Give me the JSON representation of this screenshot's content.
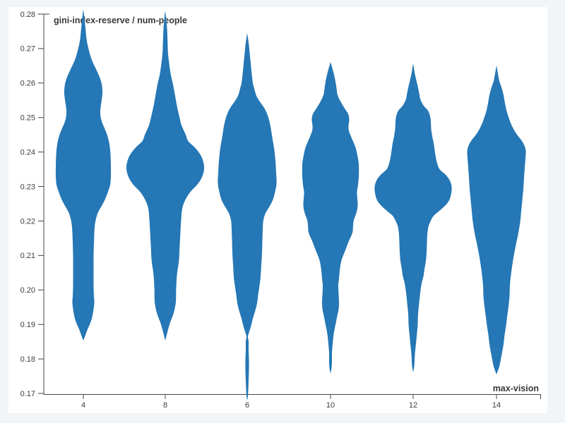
{
  "page": {
    "background_color": "#f1f5f8",
    "canvas_color": "#ffffff"
  },
  "chart_data": {
    "type": "violin",
    "title": "",
    "ylabel": "gini-index-reserve / num-people",
    "xlabel": "max-vision",
    "categories": [
      "4",
      "8",
      "6",
      "10",
      "12",
      "14"
    ],
    "y_ticks": [
      "0.28",
      "0.27",
      "0.26",
      "0.25",
      "0.24",
      "0.23",
      "0.22",
      "0.21",
      "0.20",
      "0.19",
      "0.18",
      "0.17"
    ],
    "y_domain": [
      0.17,
      0.28
    ],
    "grid": false,
    "legend": null,
    "colors": {
      "violin_fill": "#2577b5",
      "axis": "#444444",
      "tick_label": "#3d3d3d",
      "axis_title": "#3a3a3a"
    },
    "violins": [
      {
        "category": "4",
        "profile": [
          [
            0.2814,
            0
          ],
          [
            0.279,
            0.027
          ],
          [
            0.2759,
            0.055
          ],
          [
            0.2728,
            0.082
          ],
          [
            0.2698,
            0.136
          ],
          [
            0.2667,
            0.218
          ],
          [
            0.2636,
            0.345
          ],
          [
            0.2612,
            0.436
          ],
          [
            0.2591,
            0.482
          ],
          [
            0.2571,
            0.491
          ],
          [
            0.2551,
            0.473
          ],
          [
            0.253,
            0.445
          ],
          [
            0.251,
            0.436
          ],
          [
            0.2489,
            0.473
          ],
          [
            0.2469,
            0.545
          ],
          [
            0.2448,
            0.618
          ],
          [
            0.2422,
            0.673
          ],
          [
            0.2391,
            0.7
          ],
          [
            0.236,
            0.709
          ],
          [
            0.233,
            0.709
          ],
          [
            0.2305,
            0.691
          ],
          [
            0.2285,
            0.636
          ],
          [
            0.2264,
            0.564
          ],
          [
            0.2244,
            0.473
          ],
          [
            0.2228,
            0.391
          ],
          [
            0.2211,
            0.336
          ],
          [
            0.2191,
            0.3
          ],
          [
            0.2166,
            0.282
          ],
          [
            0.2136,
            0.273
          ],
          [
            0.2095,
            0.264
          ],
          [
            0.2054,
            0.264
          ],
          [
            0.2013,
            0.264
          ],
          [
            0.1982,
            0.273
          ],
          [
            0.1962,
            0.282
          ],
          [
            0.1937,
            0.255
          ],
          [
            0.1917,
            0.218
          ],
          [
            0.19,
            0.164
          ],
          [
            0.1886,
            0.109
          ],
          [
            0.1872,
            0.064
          ],
          [
            0.1853,
            0
          ]
        ]
      },
      {
        "category": "8",
        "profile": [
          [
            0.281,
            0
          ],
          [
            0.278,
            0.03
          ],
          [
            0.2749,
            0.05
          ],
          [
            0.2718,
            0.06
          ],
          [
            0.2688,
            0.07
          ],
          [
            0.2657,
            0.1
          ],
          [
            0.2626,
            0.14
          ],
          [
            0.2596,
            0.2
          ],
          [
            0.2565,
            0.25
          ],
          [
            0.2534,
            0.3
          ],
          [
            0.2504,
            0.36
          ],
          [
            0.2477,
            0.42
          ],
          [
            0.2452,
            0.52
          ],
          [
            0.2432,
            0.59
          ],
          [
            0.2412,
            0.77
          ],
          [
            0.2391,
            0.91
          ],
          [
            0.2371,
            0.98
          ],
          [
            0.235,
            1
          ],
          [
            0.2326,
            0.94
          ],
          [
            0.2305,
            0.82
          ],
          [
            0.2285,
            0.65
          ],
          [
            0.2262,
            0.52
          ],
          [
            0.2238,
            0.44
          ],
          [
            0.2207,
            0.41
          ],
          [
            0.2166,
            0.39
          ],
          [
            0.2125,
            0.37
          ],
          [
            0.2084,
            0.35
          ],
          [
            0.2043,
            0.3
          ],
          [
            0.2003,
            0.28
          ],
          [
            0.1962,
            0.27
          ],
          [
            0.1931,
            0.21
          ],
          [
            0.1907,
            0.13
          ],
          [
            0.188,
            0.06
          ],
          [
            0.1853,
            0
          ]
        ]
      },
      {
        "category": "6",
        "profile": [
          [
            0.2745,
            0
          ],
          [
            0.2718,
            0.036
          ],
          [
            0.2688,
            0.064
          ],
          [
            0.2657,
            0.091
          ],
          [
            0.2626,
            0.118
          ],
          [
            0.26,
            0.145
          ],
          [
            0.2588,
            0.173
          ],
          [
            0.2563,
            0.236
          ],
          [
            0.2546,
            0.327
          ],
          [
            0.253,
            0.427
          ],
          [
            0.2514,
            0.5
          ],
          [
            0.2493,
            0.564
          ],
          [
            0.2469,
            0.609
          ],
          [
            0.2442,
            0.645
          ],
          [
            0.2412,
            0.691
          ],
          [
            0.2375,
            0.727
          ],
          [
            0.234,
            0.745
          ],
          [
            0.2309,
            0.755
          ],
          [
            0.2285,
            0.718
          ],
          [
            0.2262,
            0.664
          ],
          [
            0.2242,
            0.573
          ],
          [
            0.2223,
            0.473
          ],
          [
            0.2203,
            0.418
          ],
          [
            0.2176,
            0.4
          ],
          [
            0.2146,
            0.391
          ],
          [
            0.2109,
            0.382
          ],
          [
            0.2074,
            0.364
          ],
          [
            0.2039,
            0.345
          ],
          [
            0.2013,
            0.318
          ],
          [
            0.1986,
            0.282
          ],
          [
            0.1962,
            0.255
          ],
          [
            0.1937,
            0.2
          ],
          [
            0.1917,
            0.145
          ],
          [
            0.1896,
            0.1
          ],
          [
            0.1876,
            0.045
          ],
          [
            0.1864,
            0.018
          ],
          [
            0.1851,
            0.036
          ],
          [
            0.1829,
            0.036
          ],
          [
            0.1798,
            0.045
          ],
          [
            0.1767,
            0.045
          ],
          [
            0.1737,
            0.036
          ],
          [
            0.171,
            0.027
          ],
          [
            0.1692,
            0.018
          ],
          [
            0.168,
            0
          ]
        ]
      },
      {
        "category": "10",
        "profile": [
          [
            0.2661,
            0
          ],
          [
            0.2636,
            0.064
          ],
          [
            0.261,
            0.118
          ],
          [
            0.2585,
            0.155
          ],
          [
            0.2569,
            0.173
          ],
          [
            0.2551,
            0.236
          ],
          [
            0.253,
            0.345
          ],
          [
            0.251,
            0.455
          ],
          [
            0.2493,
            0.482
          ],
          [
            0.2477,
            0.464
          ],
          [
            0.2461,
            0.473
          ],
          [
            0.244,
            0.545
          ],
          [
            0.2416,
            0.636
          ],
          [
            0.2391,
            0.691
          ],
          [
            0.2364,
            0.727
          ],
          [
            0.233,
            0.727
          ],
          [
            0.2305,
            0.709
          ],
          [
            0.2285,
            0.682
          ],
          [
            0.2264,
            0.691
          ],
          [
            0.2244,
            0.7
          ],
          [
            0.2223,
            0.664
          ],
          [
            0.2203,
            0.6
          ],
          [
            0.2187,
            0.582
          ],
          [
            0.2166,
            0.564
          ],
          [
            0.2142,
            0.473
          ],
          [
            0.2115,
            0.382
          ],
          [
            0.2089,
            0.291
          ],
          [
            0.2064,
            0.245
          ],
          [
            0.2033,
            0.218
          ],
          [
            0.2013,
            0.2
          ],
          [
            0.1986,
            0.209
          ],
          [
            0.1966,
            0.218
          ],
          [
            0.1945,
            0.209
          ],
          [
            0.1925,
            0.173
          ],
          [
            0.1904,
            0.136
          ],
          [
            0.1884,
            0.1
          ],
          [
            0.1864,
            0.073
          ],
          [
            0.1843,
            0.055
          ],
          [
            0.1819,
            0.036
          ],
          [
            0.1794,
            0.036
          ],
          [
            0.1774,
            0.027
          ],
          [
            0.1757,
            0
          ]
        ]
      },
      {
        "category": "12",
        "profile": [
          [
            0.2657,
            0
          ],
          [
            0.2632,
            0.036
          ],
          [
            0.2612,
            0.073
          ],
          [
            0.2591,
            0.118
          ],
          [
            0.2571,
            0.155
          ],
          [
            0.2551,
            0.191
          ],
          [
            0.2534,
            0.273
          ],
          [
            0.252,
            0.382
          ],
          [
            0.2504,
            0.436
          ],
          [
            0.2487,
            0.455
          ],
          [
            0.2467,
            0.464
          ],
          [
            0.2446,
            0.491
          ],
          [
            0.2426,
            0.527
          ],
          [
            0.2405,
            0.555
          ],
          [
            0.2385,
            0.582
          ],
          [
            0.2367,
            0.618
          ],
          [
            0.235,
            0.682
          ],
          [
            0.2334,
            0.836
          ],
          [
            0.2317,
            0.945
          ],
          [
            0.2299,
            0.991
          ],
          [
            0.2281,
            0.982
          ],
          [
            0.2262,
            0.936
          ],
          [
            0.2246,
            0.836
          ],
          [
            0.2229,
            0.673
          ],
          [
            0.2215,
            0.527
          ],
          [
            0.2201,
            0.455
          ],
          [
            0.2183,
            0.391
          ],
          [
            0.216,
            0.364
          ],
          [
            0.2136,
            0.355
          ],
          [
            0.2109,
            0.345
          ],
          [
            0.2084,
            0.327
          ],
          [
            0.206,
            0.291
          ],
          [
            0.2039,
            0.264
          ],
          [
            0.2019,
            0.218
          ],
          [
            0.1992,
            0.182
          ],
          [
            0.1962,
            0.155
          ],
          [
            0.1931,
            0.127
          ],
          [
            0.19,
            0.118
          ],
          [
            0.1876,
            0.1
          ],
          [
            0.1855,
            0.082
          ],
          [
            0.1835,
            0.064
          ],
          [
            0.1814,
            0.045
          ],
          [
            0.1794,
            0.036
          ],
          [
            0.1778,
            0.027
          ],
          [
            0.1761,
            0
          ]
        ]
      },
      {
        "category": "14",
        "profile": [
          [
            0.2651,
            0
          ],
          [
            0.2628,
            0.036
          ],
          [
            0.2606,
            0.073
          ],
          [
            0.2588,
            0.127
          ],
          [
            0.2565,
            0.182
          ],
          [
            0.2542,
            0.218
          ],
          [
            0.2518,
            0.264
          ],
          [
            0.2493,
            0.336
          ],
          [
            0.2473,
            0.409
          ],
          [
            0.2452,
            0.518
          ],
          [
            0.2432,
            0.655
          ],
          [
            0.2416,
            0.727
          ],
          [
            0.2401,
            0.755
          ],
          [
            0.2381,
            0.745
          ],
          [
            0.2354,
            0.727
          ],
          [
            0.2326,
            0.709
          ],
          [
            0.2293,
            0.691
          ],
          [
            0.226,
            0.664
          ],
          [
            0.2228,
            0.636
          ],
          [
            0.2197,
            0.609
          ],
          [
            0.2166,
            0.564
          ],
          [
            0.2136,
            0.509
          ],
          [
            0.2105,
            0.455
          ],
          [
            0.2074,
            0.409
          ],
          [
            0.2044,
            0.373
          ],
          [
            0.2013,
            0.345
          ],
          [
            0.1982,
            0.336
          ],
          [
            0.1952,
            0.309
          ],
          [
            0.1921,
            0.273
          ],
          [
            0.1896,
            0.245
          ],
          [
            0.187,
            0.209
          ],
          [
            0.1843,
            0.182
          ],
          [
            0.1819,
            0.145
          ],
          [
            0.1798,
            0.109
          ],
          [
            0.1778,
            0.073
          ],
          [
            0.1755,
            0
          ]
        ]
      }
    ]
  }
}
